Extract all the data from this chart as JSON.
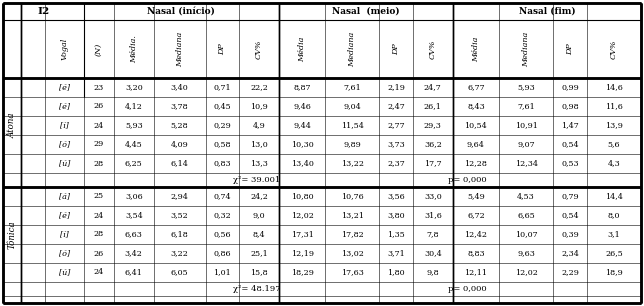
{
  "col_groups": [
    "Nasal (início)",
    "Nasal  (meio)",
    "Nasal (fim)"
  ],
  "col_headers": [
    "Vogal",
    "(N)",
    "Média.",
    "Mediana",
    "DP",
    "CV%",
    "Média",
    "Mediana",
    "DP",
    "CV%",
    "Média",
    "Mediana",
    "DP",
    "CV%"
  ],
  "row_label_atona": "Átona",
  "row_label_tonica": "Tônica",
  "atona_rows": [
    [
      "[ẽ]",
      "23",
      "3,20",
      "3,40",
      "0,71",
      "22,2",
      "8,87",
      "7,61",
      "2,19",
      "24,7",
      "6,77",
      "5,93",
      "0,99",
      "14,6"
    ],
    [
      "[ẽ]",
      "26",
      "4,12",
      "3,78",
      "0,45",
      "10,9",
      "9,46",
      "9,04",
      "2,47",
      "26,1",
      "8,43",
      "7,61",
      "0,98",
      "11,6"
    ],
    [
      "[ĩ]",
      "24",
      "5,93",
      "5,28",
      "0,29",
      "4,9",
      "9,44",
      "11,54",
      "2,77",
      "29,3",
      "10,54",
      "10,91",
      "1,47",
      "13,9"
    ],
    [
      "[õ]",
      "29",
      "4,45",
      "4,09",
      "0,58",
      "13,0",
      "10,30",
      "9,89",
      "3,73",
      "36,2",
      "9,64",
      "9,07",
      "0,54",
      "5,6"
    ],
    [
      "[ũ]",
      "28",
      "6,25",
      "6,14",
      "0,83",
      "13,3",
      "13,40",
      "13,22",
      "2,37",
      "17,7",
      "12,28",
      "12,34",
      "0,53",
      "4,3"
    ]
  ],
  "atona_chi": "χ²= 39.001",
  "atona_p": "p= 0,000",
  "tonica_rows": [
    [
      "[ã]",
      "25",
      "3,06",
      "2,94",
      "0,74",
      "24,2",
      "10,80",
      "10,76",
      "3,56",
      "33,0",
      "5,49",
      "4,53",
      "0,79",
      "14,4"
    ],
    [
      "[ẽ]",
      "24",
      "3,54",
      "3,52",
      "0,32",
      "9,0",
      "12,02",
      "13,21",
      "3,80",
      "31,6",
      "6,72",
      "6,65",
      "0,54",
      "8,0"
    ],
    [
      "[ĩ]",
      "28",
      "6,63",
      "6,18",
      "0,56",
      "8,4",
      "17,31",
      "17,82",
      "1,35",
      "7,8",
      "12,42",
      "10,07",
      "0,39",
      "3,1"
    ],
    [
      "[õ]",
      "26",
      "3,42",
      "3,22",
      "0,86",
      "25,1",
      "12,19",
      "13,02",
      "3,71",
      "30,4",
      "8,83",
      "9,63",
      "2,34",
      "26,5"
    ],
    [
      "[ũ]",
      "24",
      "6,41",
      "6,05",
      "1,01",
      "15,8",
      "18,29",
      "17,63",
      "1,80",
      "9,8",
      "12,11",
      "12,02",
      "2,29",
      "18,9"
    ]
  ],
  "tonica_chi": "χ²= 48.197",
  "tonica_p": "p= 0,000",
  "bg_color": "#ffffff",
  "text_color": "#000000",
  "note_first_col_vogal": "[ẽ]"
}
